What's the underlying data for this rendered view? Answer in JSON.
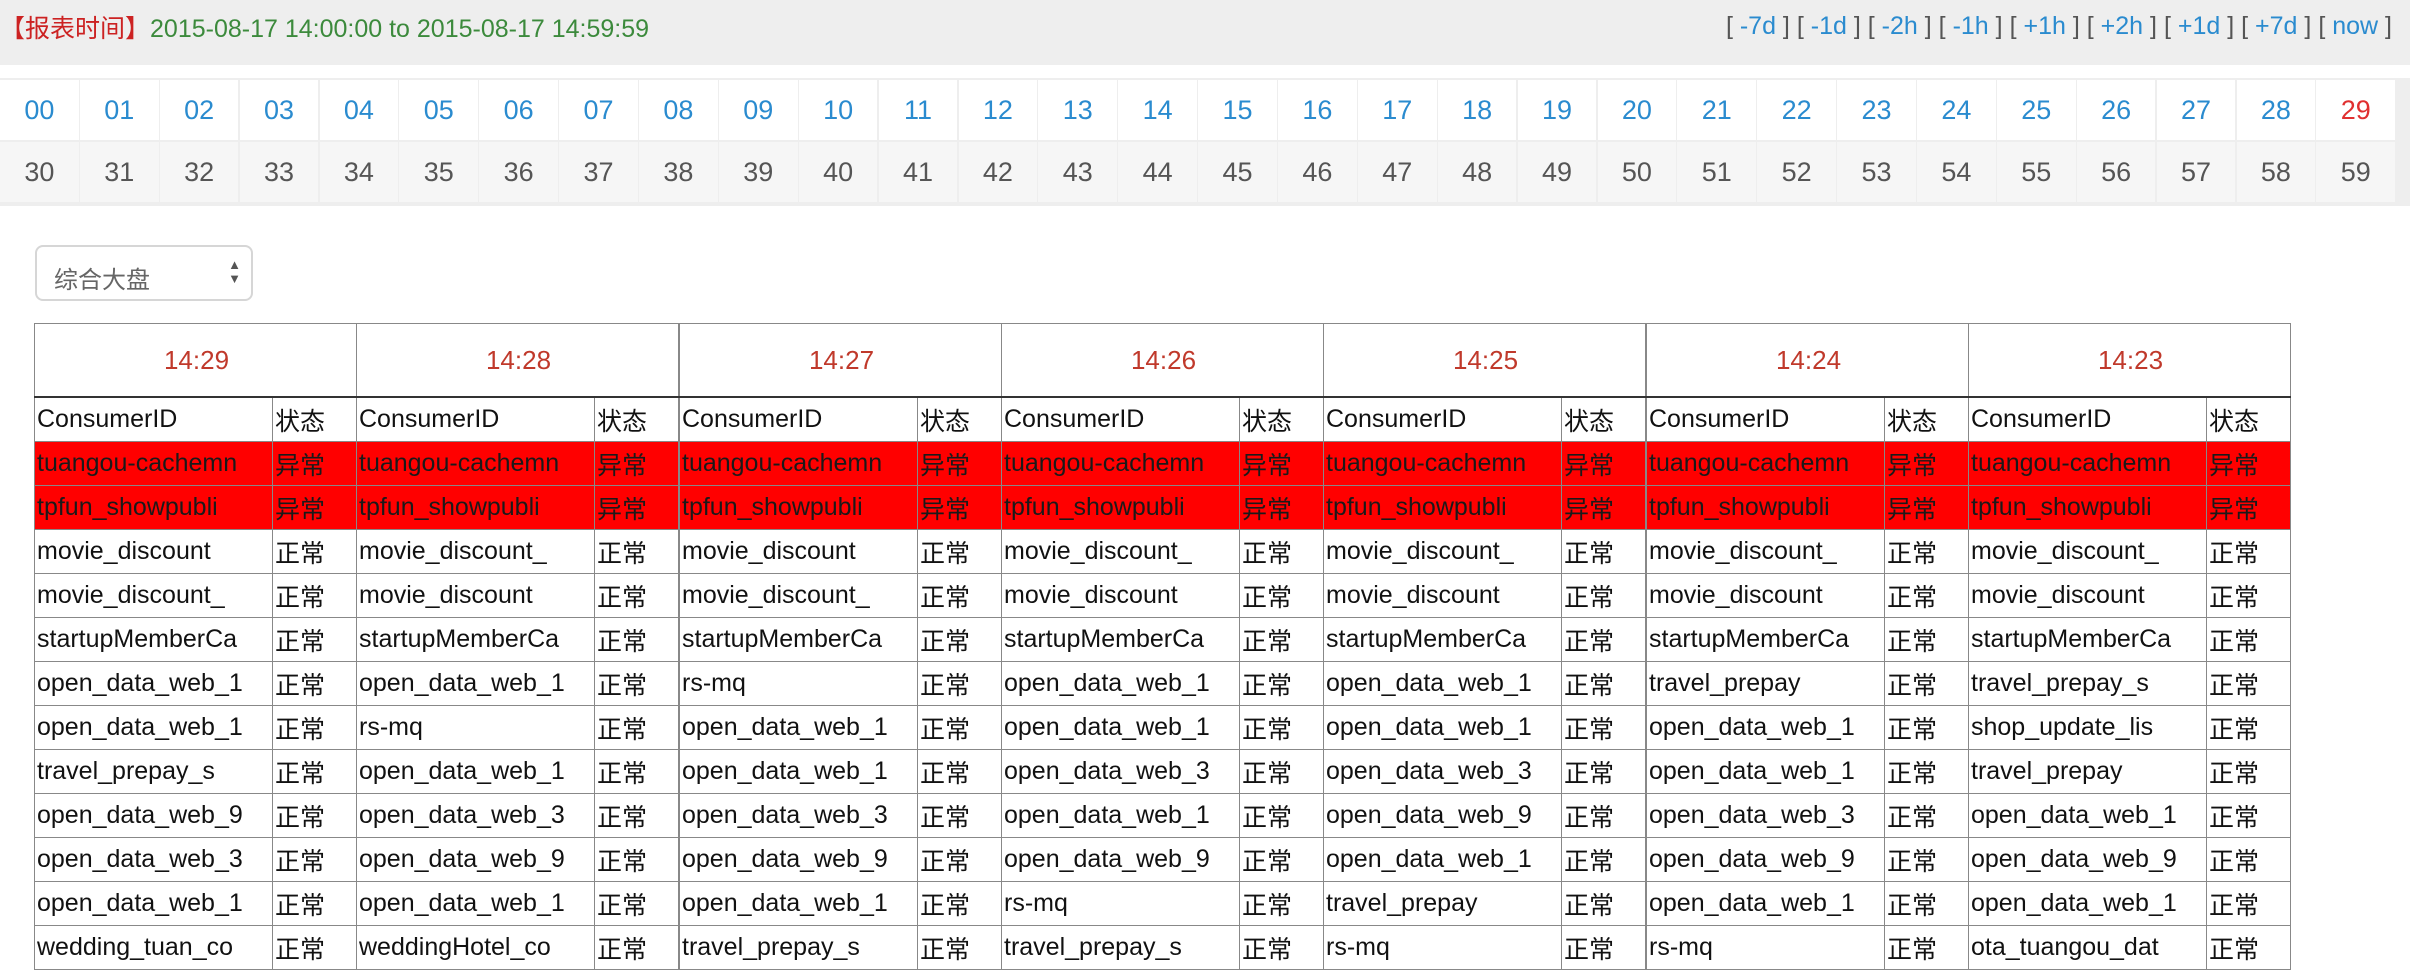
{
  "report_time": {
    "tag": "【报表时间】",
    "range": "2015-08-17 14:00:00 to 2015-08-17 14:59:59"
  },
  "nav": [
    {
      "label": "-7d"
    },
    {
      "label": "-1d"
    },
    {
      "label": "-2h"
    },
    {
      "label": "-1h"
    },
    {
      "label": "+1h"
    },
    {
      "label": "+2h"
    },
    {
      "label": "+1d"
    },
    {
      "label": "+7d"
    },
    {
      "label": "now"
    }
  ],
  "minutes": {
    "current": "29",
    "row1": [
      "00",
      "01",
      "02",
      "03",
      "04",
      "05",
      "06",
      "07",
      "08",
      "09",
      "10",
      "11",
      "12",
      "13",
      "14",
      "15",
      "16",
      "17",
      "18",
      "19",
      "20",
      "21",
      "22",
      "23",
      "24",
      "25",
      "26",
      "27",
      "28",
      "29"
    ],
    "row2": [
      "30",
      "31",
      "32",
      "33",
      "34",
      "35",
      "36",
      "37",
      "38",
      "39",
      "40",
      "41",
      "42",
      "43",
      "44",
      "45",
      "46",
      "47",
      "48",
      "49",
      "50",
      "51",
      "52",
      "53",
      "54",
      "55",
      "56",
      "57",
      "58",
      "59"
    ]
  },
  "selector": {
    "value": "综合大盘"
  },
  "headers": {
    "consumer_id": "ConsumerID",
    "status": "状态"
  },
  "status_labels": {
    "abnormal": "异常",
    "normal": "正常"
  },
  "colors": {
    "abnormal_row": "#ff0000",
    "link": "#2a8bcf",
    "time": "#c0392b",
    "report_range": "#3c8a3c"
  },
  "panels": [
    {
      "time": "14:29",
      "rows": [
        {
          "id": "tuangou-cachemn",
          "status": "abnormal"
        },
        {
          "id": "tpfun_showpubli",
          "status": "abnormal"
        },
        {
          "id": "movie_discount",
          "status": "normal"
        },
        {
          "id": "movie_discount_",
          "status": "normal"
        },
        {
          "id": "startupMemberCa",
          "status": "normal"
        },
        {
          "id": "open_data_web_1",
          "status": "normal"
        },
        {
          "id": "open_data_web_1",
          "status": "normal"
        },
        {
          "id": "travel_prepay_s",
          "status": "normal"
        },
        {
          "id": "open_data_web_9",
          "status": "normal"
        },
        {
          "id": "open_data_web_3",
          "status": "normal"
        },
        {
          "id": "open_data_web_1",
          "status": "normal"
        },
        {
          "id": "wedding_tuan_co",
          "status": "normal"
        }
      ]
    },
    {
      "time": "14:28",
      "rows": [
        {
          "id": "tuangou-cachemn",
          "status": "abnormal"
        },
        {
          "id": "tpfun_showpubli",
          "status": "abnormal"
        },
        {
          "id": "movie_discount_",
          "status": "normal"
        },
        {
          "id": "movie_discount",
          "status": "normal"
        },
        {
          "id": "startupMemberCa",
          "status": "normal"
        },
        {
          "id": "open_data_web_1",
          "status": "normal"
        },
        {
          "id": "rs-mq",
          "status": "normal"
        },
        {
          "id": "open_data_web_1",
          "status": "normal"
        },
        {
          "id": "open_data_web_3",
          "status": "normal"
        },
        {
          "id": "open_data_web_9",
          "status": "normal"
        },
        {
          "id": "open_data_web_1",
          "status": "normal"
        },
        {
          "id": "weddingHotel_co",
          "status": "normal"
        }
      ]
    },
    {
      "time": "14:27",
      "rows": [
        {
          "id": "tuangou-cachemn",
          "status": "abnormal"
        },
        {
          "id": "tpfun_showpubli",
          "status": "abnormal"
        },
        {
          "id": "movie_discount",
          "status": "normal"
        },
        {
          "id": "movie_discount_",
          "status": "normal"
        },
        {
          "id": "startupMemberCa",
          "status": "normal"
        },
        {
          "id": "rs-mq",
          "status": "normal"
        },
        {
          "id": "open_data_web_1",
          "status": "normal"
        },
        {
          "id": "open_data_web_1",
          "status": "normal"
        },
        {
          "id": "open_data_web_3",
          "status": "normal"
        },
        {
          "id": "open_data_web_9",
          "status": "normal"
        },
        {
          "id": "open_data_web_1",
          "status": "normal"
        },
        {
          "id": "travel_prepay_s",
          "status": "normal"
        }
      ]
    },
    {
      "time": "14:26",
      "rows": [
        {
          "id": "tuangou-cachemn",
          "status": "abnormal"
        },
        {
          "id": "tpfun_showpubli",
          "status": "abnormal"
        },
        {
          "id": "movie_discount_",
          "status": "normal"
        },
        {
          "id": "movie_discount",
          "status": "normal"
        },
        {
          "id": "startupMemberCa",
          "status": "normal"
        },
        {
          "id": "open_data_web_1",
          "status": "normal"
        },
        {
          "id": "open_data_web_1",
          "status": "normal"
        },
        {
          "id": "open_data_web_3",
          "status": "normal"
        },
        {
          "id": "open_data_web_1",
          "status": "normal"
        },
        {
          "id": "open_data_web_9",
          "status": "normal"
        },
        {
          "id": "rs-mq",
          "status": "normal"
        },
        {
          "id": "travel_prepay_s",
          "status": "normal"
        }
      ]
    },
    {
      "time": "14:25",
      "rows": [
        {
          "id": "tuangou-cachemn",
          "status": "abnormal"
        },
        {
          "id": "tpfun_showpubli",
          "status": "abnormal"
        },
        {
          "id": "movie_discount_",
          "status": "normal"
        },
        {
          "id": "movie_discount",
          "status": "normal"
        },
        {
          "id": "startupMemberCa",
          "status": "normal"
        },
        {
          "id": "open_data_web_1",
          "status": "normal"
        },
        {
          "id": "open_data_web_1",
          "status": "normal"
        },
        {
          "id": "open_data_web_3",
          "status": "normal"
        },
        {
          "id": "open_data_web_9",
          "status": "normal"
        },
        {
          "id": "open_data_web_1",
          "status": "normal"
        },
        {
          "id": "travel_prepay",
          "status": "normal"
        },
        {
          "id": "rs-mq",
          "status": "normal"
        }
      ]
    },
    {
      "time": "14:24",
      "rows": [
        {
          "id": "tuangou-cachemn",
          "status": "abnormal"
        },
        {
          "id": "tpfun_showpubli",
          "status": "abnormal"
        },
        {
          "id": "movie_discount_",
          "status": "normal"
        },
        {
          "id": "movie_discount",
          "status": "normal"
        },
        {
          "id": "startupMemberCa",
          "status": "normal"
        },
        {
          "id": "travel_prepay",
          "status": "normal"
        },
        {
          "id": "open_data_web_1",
          "status": "normal"
        },
        {
          "id": "open_data_web_1",
          "status": "normal"
        },
        {
          "id": "open_data_web_3",
          "status": "normal"
        },
        {
          "id": "open_data_web_9",
          "status": "normal"
        },
        {
          "id": "open_data_web_1",
          "status": "normal"
        },
        {
          "id": "rs-mq",
          "status": "normal"
        }
      ]
    },
    {
      "time": "14:23",
      "rows": [
        {
          "id": "tuangou-cachemn",
          "status": "abnormal"
        },
        {
          "id": "tpfun_showpubli",
          "status": "abnormal"
        },
        {
          "id": "movie_discount_",
          "status": "normal"
        },
        {
          "id": "movie_discount",
          "status": "normal"
        },
        {
          "id": "startupMemberCa",
          "status": "normal"
        },
        {
          "id": "travel_prepay_s",
          "status": "normal"
        },
        {
          "id": "shop_update_lis",
          "status": "normal"
        },
        {
          "id": "travel_prepay",
          "status": "normal"
        },
        {
          "id": "open_data_web_1",
          "status": "normal"
        },
        {
          "id": "open_data_web_9",
          "status": "normal"
        },
        {
          "id": "open_data_web_1",
          "status": "normal"
        },
        {
          "id": "ota_tuangou_dat",
          "status": "normal"
        }
      ]
    }
  ]
}
